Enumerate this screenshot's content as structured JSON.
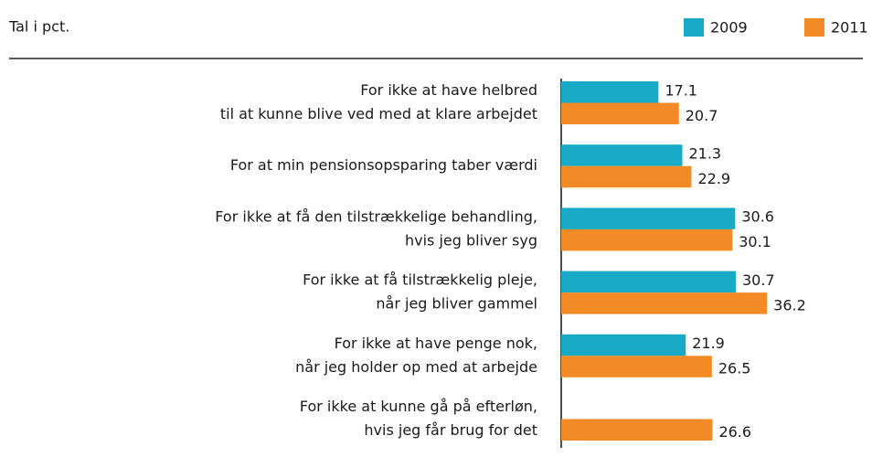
{
  "chart_data": {
    "type": "hbar",
    "title": "Tal i pct.",
    "categories": [
      [
        "For ikke at have helbred",
        "til at kunne blive ved med at klare arbejdet"
      ],
      [
        "For at min pensionsopsparing taber værdi"
      ],
      [
        "For ikke at få den tilstrækkelige behandling,",
        "hvis jeg bliver syg"
      ],
      [
        "For ikke at få tilstrækkelig pleje,",
        "når jeg bliver gammel"
      ],
      [
        "For ikke at have penge nok,",
        "når jeg holder op med at arbejde"
      ],
      [
        "For ikke at kunne gå på efterløn,",
        "hvis jeg får brug for det"
      ]
    ],
    "series": [
      {
        "name": "2009",
        "color": "#17a9c6",
        "values": [
          17.1,
          21.3,
          30.6,
          30.7,
          21.9,
          null
        ]
      },
      {
        "name": "2011",
        "color": "#f28a25",
        "values": [
          20.7,
          22.9,
          30.1,
          36.2,
          26.5,
          26.6
        ]
      }
    ],
    "xlim": [
      0,
      50
    ],
    "legend": "top-right"
  }
}
